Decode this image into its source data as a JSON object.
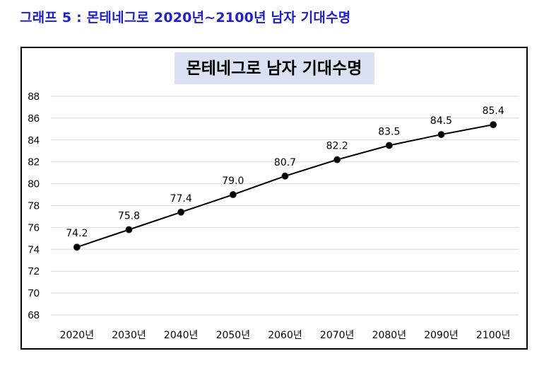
{
  "caption": "그래프 5 : 몬테네그로 2020년~2100년 남자 기대수명",
  "colors": {
    "caption": "#1f1fcc",
    "title_bg": "#d9e1f2",
    "line": "#000000",
    "grid": "#d9d9d9"
  },
  "chart_data": {
    "type": "line",
    "title": "몬테네그로 남자 기대수명",
    "categories": [
      "2020년",
      "2030년",
      "2040년",
      "2050년",
      "2060년",
      "2070년",
      "2080년",
      "2090년",
      "2100년"
    ],
    "series": [
      {
        "values": [
          74.2,
          75.8,
          77.4,
          79.0,
          80.7,
          82.2,
          83.5,
          84.5,
          85.4
        ]
      }
    ],
    "data_labels": [
      "74.2",
      "75.8",
      "77.4",
      "79.0",
      "80.7",
      "82.2",
      "83.5",
      "84.5",
      "85.4"
    ],
    "ylim": [
      68,
      88
    ],
    "yticks": [
      68,
      70,
      72,
      74,
      76,
      78,
      80,
      82,
      84,
      86,
      88
    ],
    "xlabel": "",
    "ylabel": "",
    "grid": true,
    "legend": "none"
  }
}
